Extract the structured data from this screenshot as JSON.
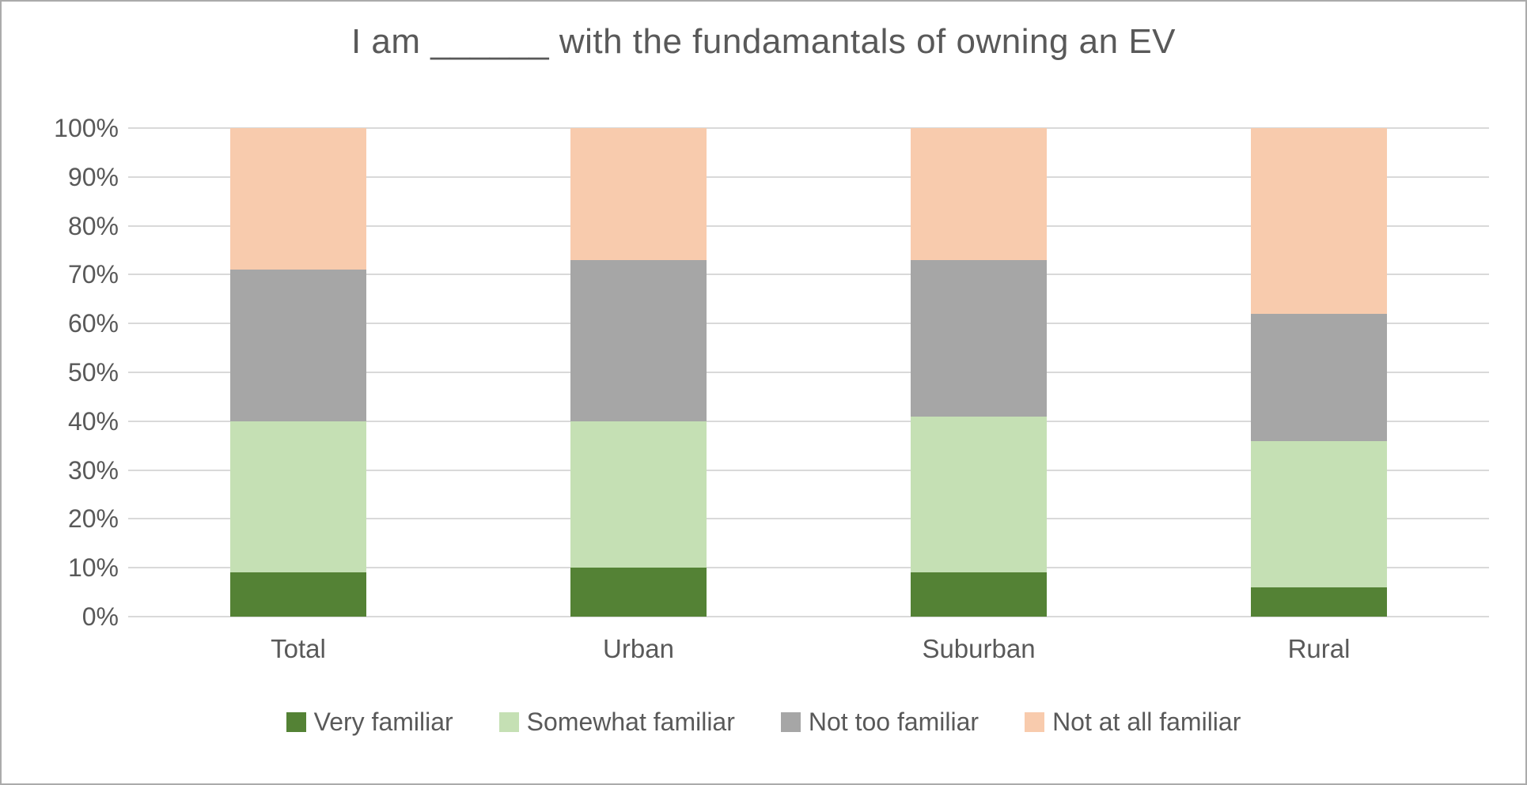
{
  "title": "I am ______ with the fundamantals of owning an EV",
  "chart_data": {
    "type": "bar",
    "subtype": "stacked-100-percent-column",
    "title": "I am ______ with the fundamantals of owning an EV",
    "categories": [
      "Total",
      "Urban",
      "Suburban",
      "Rural"
    ],
    "series": [
      {
        "name": "Very familiar",
        "color": "#548235",
        "values": [
          9,
          10,
          9,
          6
        ]
      },
      {
        "name": "Somewhat familiar",
        "color": "#C5E0B4",
        "values": [
          31,
          30,
          32,
          30
        ]
      },
      {
        "name": "Not too familiar",
        "color": "#A6A6A6",
        "values": [
          31,
          33,
          32,
          26
        ]
      },
      {
        "name": "Not at all familiar",
        "color": "#F8CBAD",
        "values": [
          29,
          27,
          27,
          38
        ]
      }
    ],
    "xlabel": "",
    "ylabel": "",
    "ylim": [
      0,
      100
    ],
    "y_tick_labels": [
      "0%",
      "10%",
      "20%",
      "30%",
      "40%",
      "50%",
      "60%",
      "70%",
      "80%",
      "90%",
      "100%"
    ],
    "grid": true,
    "gridline_color": "#D9D9D9",
    "text_color": "#595959",
    "legend_position": "bottom"
  }
}
